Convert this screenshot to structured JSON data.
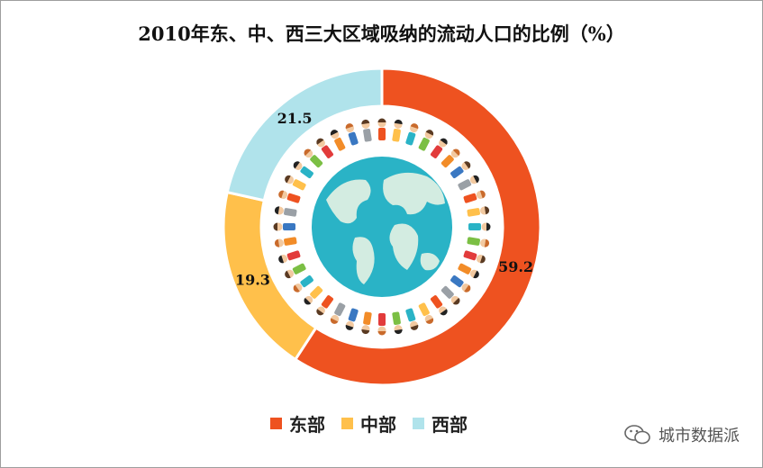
{
  "chart_data": {
    "type": "pie",
    "title": "2010年东、中、西三大区域吸纳的流动人口的比例（%）",
    "categories": [
      "东部",
      "中部",
      "西部"
    ],
    "values": [
      59.2,
      19.3,
      21.5
    ],
    "value_labels": [
      "59.2",
      "19.3",
      "21.5"
    ],
    "colors": [
      "#EE5220",
      "#FFC04B",
      "#B0E3EB"
    ],
    "legend_position": "bottom"
  },
  "watermark": {
    "text": "城市数据派",
    "icon": "wechat-bubble-icon"
  }
}
